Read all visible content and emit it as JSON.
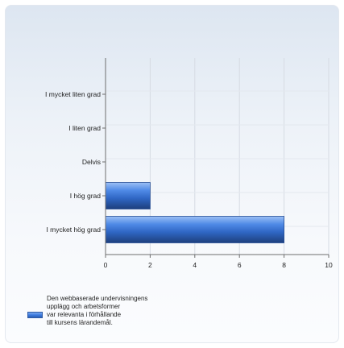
{
  "chart_data": {
    "type": "bar",
    "orientation": "horizontal",
    "categories": [
      "I mycket liten grad",
      "I liten grad",
      "Delvis",
      "I hög grad",
      "I mycket hög grad"
    ],
    "series": [
      {
        "name": "Den webbaserade undervisningens\nupplägg och arbetsformer\nvar relevanta i förhållande\ntill kursens lärandemål.",
        "values": [
          0,
          0,
          0,
          2,
          8
        ],
        "color": "#3d7be0"
      }
    ],
    "xlim": [
      0,
      10
    ],
    "xticks": [
      0,
      2,
      4,
      6,
      8,
      10
    ],
    "grid": true,
    "legend_position": "bottom-left"
  }
}
